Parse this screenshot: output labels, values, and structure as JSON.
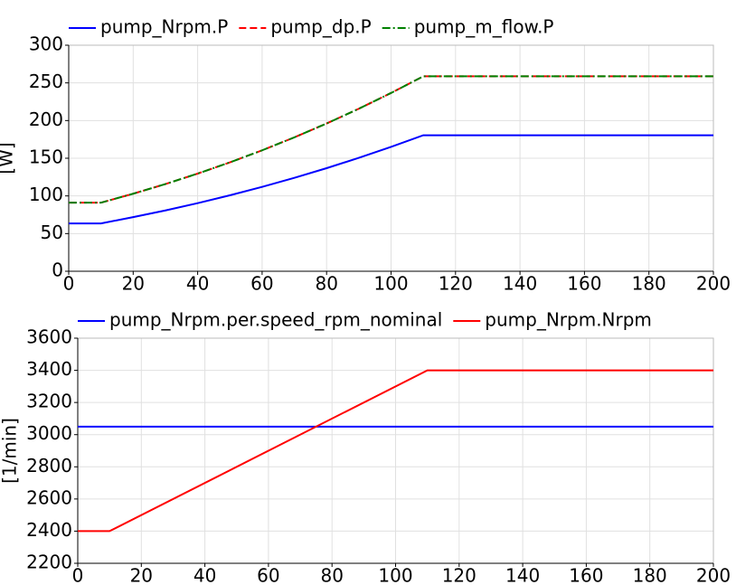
{
  "chart_data": [
    {
      "type": "line",
      "ylabel": "[W]",
      "x": [
        0,
        10,
        20,
        30,
        40,
        50,
        60,
        70,
        80,
        90,
        100,
        110,
        200
      ],
      "series": [
        {
          "name": "pump_Nrpm.P",
          "color": "#0000ff",
          "style": "solid",
          "values": [
            63.5,
            63.5,
            71.8,
            80.7,
            90.4,
            100.8,
            112.0,
            124.0,
            136.8,
            150.5,
            165.1,
            180.5,
            180.5
          ]
        },
        {
          "name": "pump_dp.P",
          "color": "#ff0000",
          "style": "dashed",
          "values": [
            91,
            91,
            102.9,
            115.7,
            129.6,
            144.5,
            160.5,
            177.7,
            196.1,
            215.7,
            236.6,
            258.7,
            258.7
          ]
        },
        {
          "name": "pump_m_flow.P",
          "color": "#008000",
          "style": "dashdot",
          "values": [
            91,
            91,
            102.9,
            115.7,
            129.6,
            144.5,
            160.5,
            177.7,
            196.1,
            215.7,
            236.6,
            258.7,
            258.7
          ]
        }
      ],
      "xlim": [
        0,
        200
      ],
      "xticks": [
        0,
        20,
        40,
        60,
        80,
        100,
        120,
        140,
        160,
        180,
        200
      ],
      "ylim": [
        0,
        300
      ],
      "yticks": [
        0,
        50,
        100,
        150,
        200,
        250,
        300
      ],
      "grid": true,
      "legend": "top"
    },
    {
      "type": "line",
      "ylabel": "[1/min]",
      "x": [
        0,
        10,
        110,
        200
      ],
      "series": [
        {
          "name": "pump_Nrpm.per.speed_rpm_nominal",
          "color": "#0000ff",
          "style": "solid",
          "values": [
            3050,
            3050,
            3050,
            3050
          ]
        },
        {
          "name": "pump_Nrpm.Nrpm",
          "color": "#ff0000",
          "style": "solid",
          "values": [
            2400,
            2400,
            3400,
            3400
          ]
        }
      ],
      "xlim": [
        0,
        200
      ],
      "xticks": [
        0,
        20,
        40,
        60,
        80,
        100,
        120,
        140,
        160,
        180,
        200
      ],
      "ylim": [
        2200,
        3600
      ],
      "yticks": [
        2200,
        2400,
        2600,
        2800,
        3000,
        3200,
        3400,
        3600
      ],
      "grid": true,
      "legend": "top"
    }
  ]
}
